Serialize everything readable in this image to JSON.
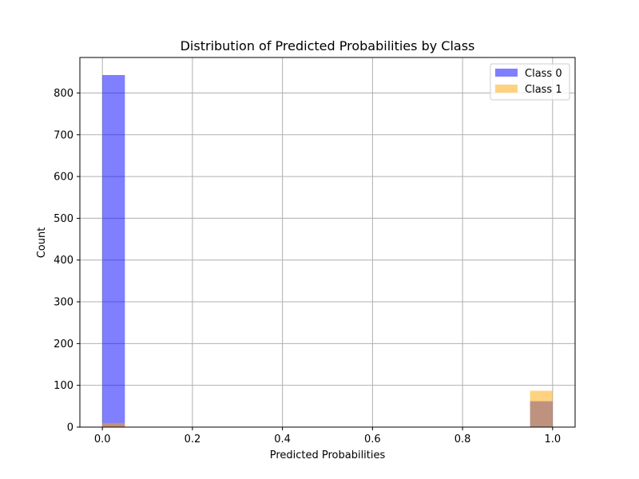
{
  "chart_data": {
    "type": "bar",
    "title": "Distribution of Predicted Probabilities by Class",
    "xlabel": "Predicted Probabilities",
    "ylabel": "Count",
    "xlim": [
      -0.05,
      1.05
    ],
    "ylim": [
      0,
      885
    ],
    "xticks": [
      0.0,
      0.2,
      0.4,
      0.6,
      0.8,
      1.0
    ],
    "xtick_labels": [
      "0.0",
      "0.2",
      "0.4",
      "0.6",
      "0.8",
      "1.0"
    ],
    "yticks": [
      0,
      100,
      200,
      300,
      400,
      500,
      600,
      700,
      800
    ],
    "ytick_labels": [
      "0",
      "100",
      "200",
      "300",
      "400",
      "500",
      "600",
      "700",
      "800"
    ],
    "grid": true,
    "legend_position": "top-right",
    "overlay": true,
    "bin_width": 0.05,
    "series": [
      {
        "name": "Class 0",
        "color": "#0000ff",
        "alpha": 0.5,
        "bins": [
          {
            "x0": 0.0,
            "x1": 0.05,
            "count": 843
          },
          {
            "x0": 0.95,
            "x1": 1.0,
            "count": 62
          }
        ]
      },
      {
        "name": "Class 1",
        "color": "#ffa500",
        "alpha": 0.5,
        "bins": [
          {
            "x0": 0.0,
            "x1": 0.05,
            "count": 10
          },
          {
            "x0": 0.95,
            "x1": 1.0,
            "count": 87
          }
        ]
      }
    ]
  }
}
